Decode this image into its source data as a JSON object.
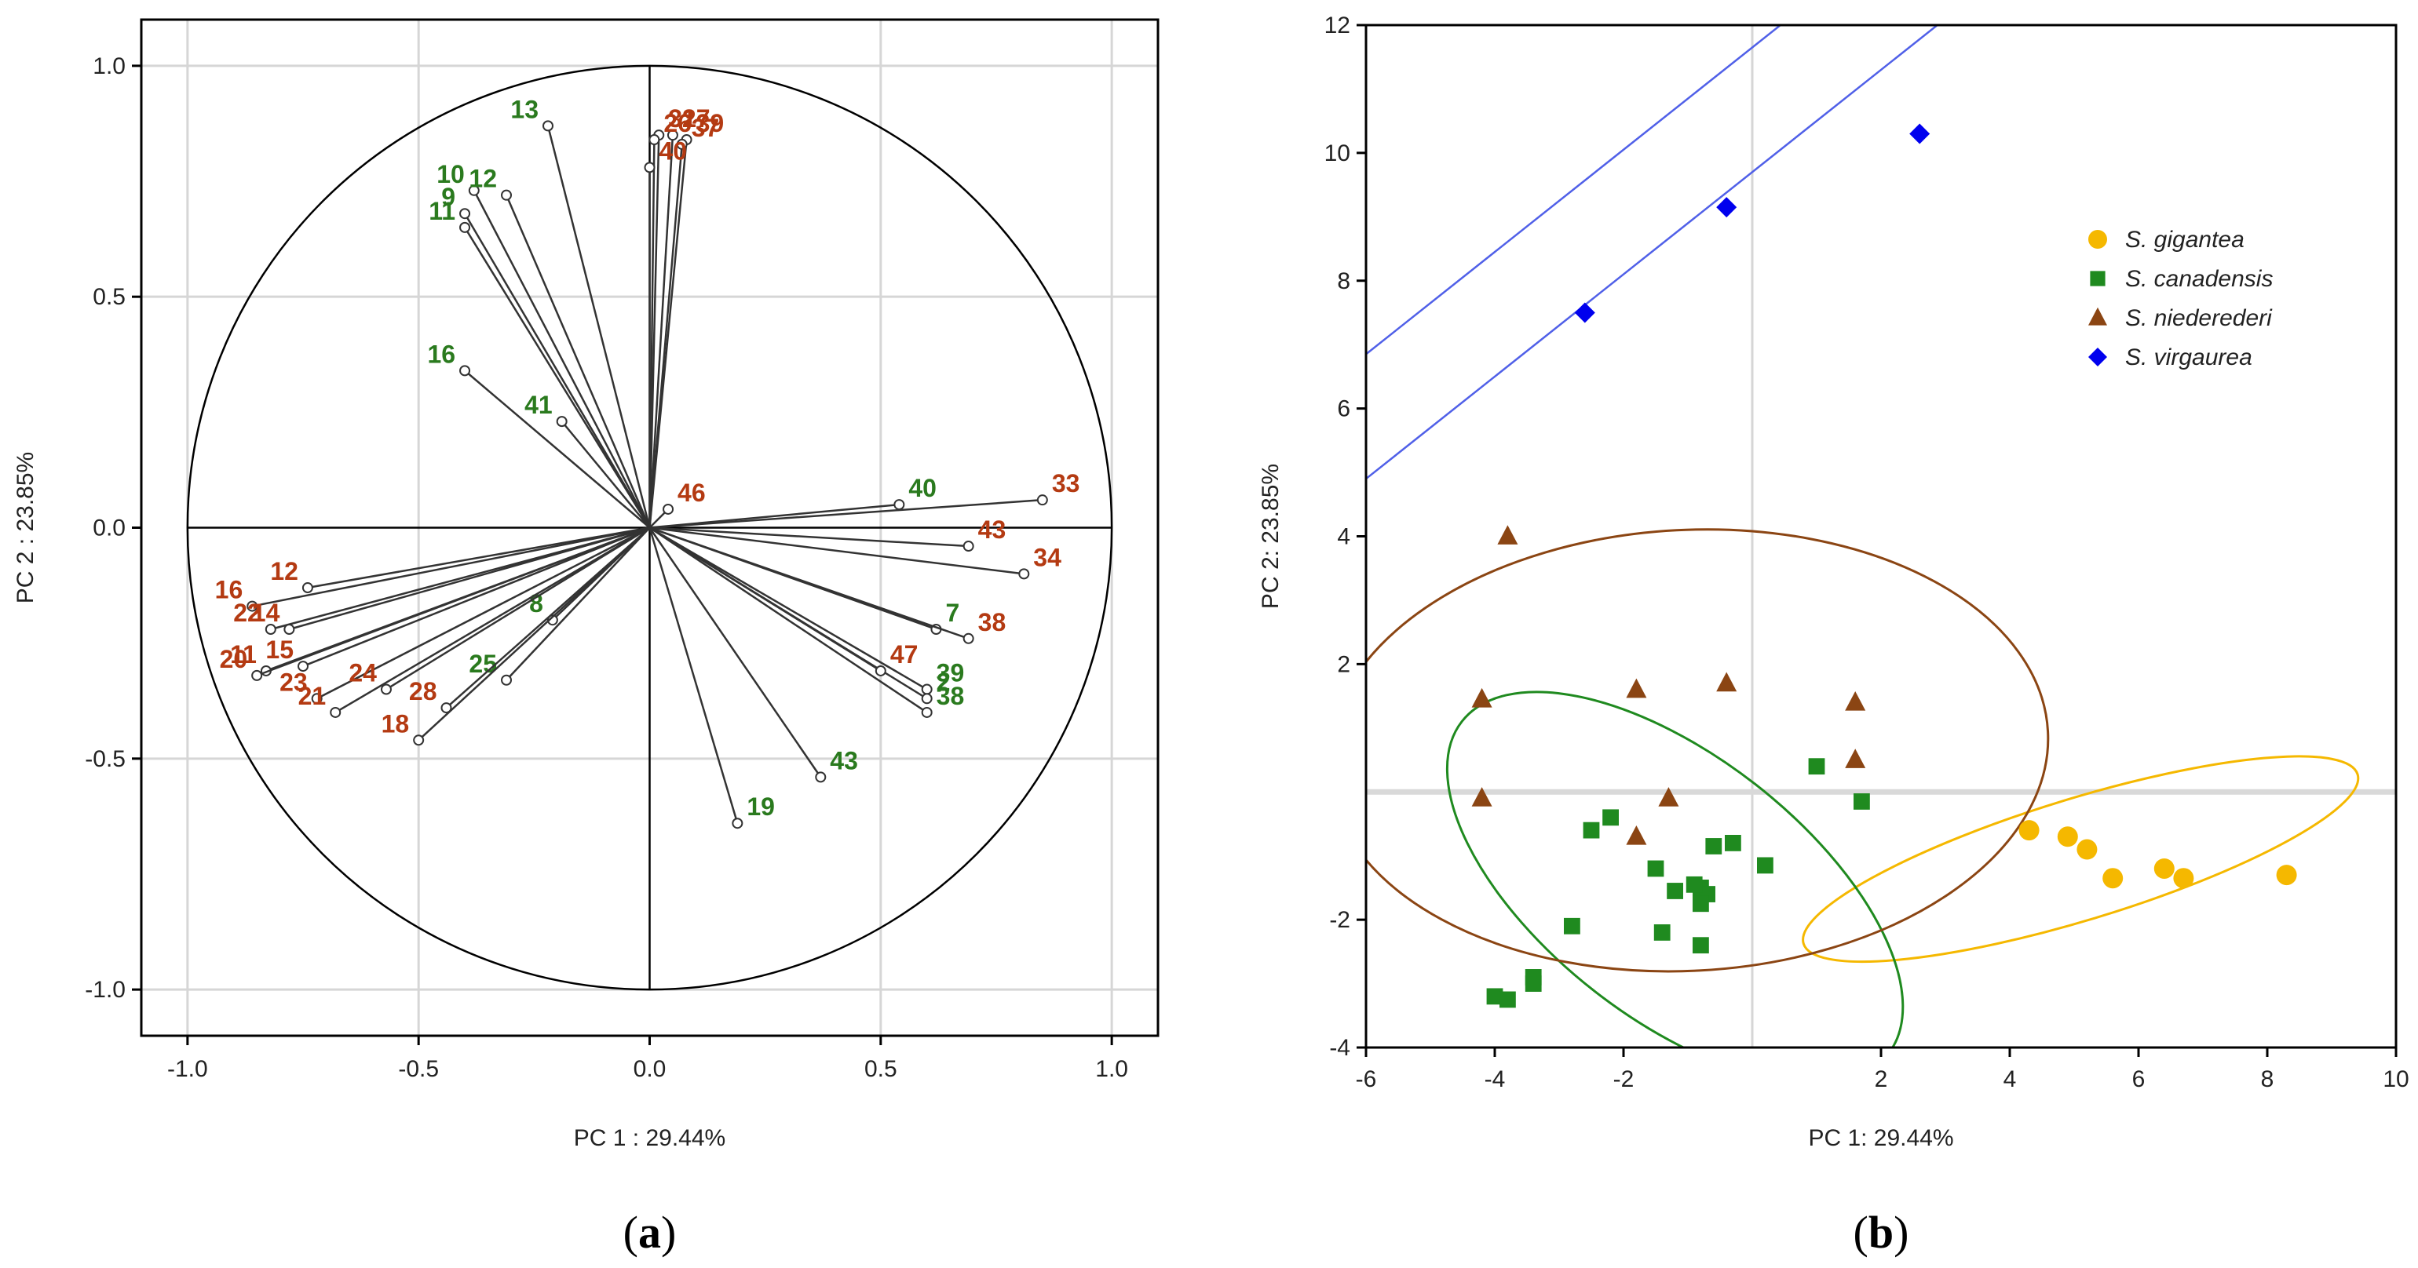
{
  "chart_data": [
    {
      "panel_label": "a",
      "type": "scatter",
      "subtype": "loading-plot",
      "xlabel": "PC 1 : 29.44%",
      "ylabel": "PC 2 : 23.85%",
      "xlim": [
        -1.1,
        1.1
      ],
      "ylim": [
        -1.1,
        1.1
      ],
      "xticks": [
        -1.0,
        -0.5,
        0.0,
        0.5,
        1.0
      ],
      "yticks": [
        -1.0,
        -0.5,
        0.0,
        0.5,
        1.0
      ],
      "xtick_labels": [
        "-1.0",
        "-0.5",
        "0.0",
        "0.5",
        "1.0"
      ],
      "ytick_labels": [
        "-1.0",
        "-0.5",
        "0.0",
        "0.5",
        "1.0"
      ],
      "unit_circle": true,
      "colors": {
        "green": "#2a7a1e",
        "red": "#b43a12"
      },
      "series": [
        {
          "name": "green-variables",
          "color": "green",
          "points": [
            {
              "label": "13",
              "x": -0.22,
              "y": 0.87
            },
            {
              "label": "10",
              "x": -0.38,
              "y": 0.73
            },
            {
              "label": "12",
              "x": -0.31,
              "y": 0.72
            },
            {
              "label": "9",
              "x": -0.4,
              "y": 0.68
            },
            {
              "label": "11",
              "x": -0.4,
              "y": 0.65
            },
            {
              "label": "16",
              "x": -0.4,
              "y": 0.34
            },
            {
              "label": "41",
              "x": -0.19,
              "y": 0.23
            },
            {
              "label": "40",
              "x": 0.54,
              "y": 0.05
            },
            {
              "label": "8",
              "x": -0.21,
              "y": -0.2
            },
            {
              "label": "25",
              "x": -0.31,
              "y": -0.33
            },
            {
              "label": "7",
              "x": 0.62,
              "y": -0.22
            },
            {
              "label": "39",
              "x": 0.6,
              "y": -0.35
            },
            {
              "label": "2",
              "x": 0.6,
              "y": -0.37
            },
            {
              "label": "38",
              "x": 0.6,
              "y": -0.4
            },
            {
              "label": "43",
              "x": 0.37,
              "y": -0.54
            },
            {
              "label": "19",
              "x": 0.19,
              "y": -0.64
            }
          ]
        },
        {
          "name": "red-variables",
          "color": "red",
          "points": [
            {
              "label": "31",
              "x": 0.02,
              "y": 0.85
            },
            {
              "label": "27",
              "x": 0.05,
              "y": 0.85
            },
            {
              "label": "39",
              "x": 0.08,
              "y": 0.84
            },
            {
              "label": "26",
              "x": 0.01,
              "y": 0.84
            },
            {
              "label": "37",
              "x": 0.07,
              "y": 0.83
            },
            {
              "label": "40",
              "x": 0.0,
              "y": 0.78
            },
            {
              "label": "46",
              "x": 0.04,
              "y": 0.04
            },
            {
              "label": "33",
              "x": 0.85,
              "y": 0.06
            },
            {
              "label": "43",
              "x": 0.69,
              "y": -0.04
            },
            {
              "label": "34",
              "x": 0.81,
              "y": -0.1
            },
            {
              "label": "38",
              "x": 0.69,
              "y": -0.24
            },
            {
              "label": "47",
              "x": 0.5,
              "y": -0.31
            },
            {
              "label": "12",
              "x": -0.74,
              "y": -0.13
            },
            {
              "label": "16",
              "x": -0.86,
              "y": -0.17
            },
            {
              "label": "22",
              "x": -0.82,
              "y": -0.22
            },
            {
              "label": "14",
              "x": -0.78,
              "y": -0.22
            },
            {
              "label": "11",
              "x": -0.83,
              "y": -0.31
            },
            {
              "label": "15",
              "x": -0.75,
              "y": -0.3
            },
            {
              "label": "20",
              "x": -0.85,
              "y": -0.32
            },
            {
              "label": "23",
              "x": -0.72,
              "y": -0.37
            },
            {
              "label": "21",
              "x": -0.68,
              "y": -0.4
            },
            {
              "label": "24",
              "x": -0.57,
              "y": -0.35
            },
            {
              "label": "28",
              "x": -0.44,
              "y": -0.39
            },
            {
              "label": "18",
              "x": -0.5,
              "y": -0.46
            }
          ]
        }
      ]
    },
    {
      "panel_label": "b",
      "type": "scatter",
      "xlabel": "PC 1: 29.44%",
      "ylabel": "PC 2: 23.85%",
      "xlim": [
        -6,
        10
      ],
      "ylim": [
        -4,
        12
      ],
      "xticks": [
        -6,
        -4,
        -2,
        2,
        4,
        6,
        8,
        10
      ],
      "yticks": [
        -4,
        -2,
        2,
        4,
        6,
        8,
        10,
        12
      ],
      "xtick_labels": [
        "-6",
        "-4",
        "-2",
        "2",
        "4",
        "6",
        "8",
        "10"
      ],
      "ytick_labels": [
        "-4",
        "-2",
        "2",
        "4",
        "6",
        "8",
        "10",
        "12"
      ],
      "reference_lines": {
        "x": 0,
        "y": 0
      },
      "legend": {
        "position": "upper-right",
        "entries": [
          "S. gigantea",
          "S. canadensis",
          "S. niederederi",
          "S. virgaurea"
        ]
      },
      "series": [
        {
          "name": "S. gigantea",
          "marker": "circle",
          "color": "#f5b800",
          "points": [
            [
              4.3,
              -0.6
            ],
            [
              4.9,
              -0.7
            ],
            [
              5.2,
              -0.9
            ],
            [
              5.6,
              -1.35
            ],
            [
              6.4,
              -1.2
            ],
            [
              6.7,
              -1.35
            ],
            [
              8.3,
              -1.3
            ]
          ],
          "ellipse": {
            "cx": 5.1,
            "cy": -1.05,
            "rx": 4.5,
            "ry": 0.95,
            "angle_deg": -17
          }
        },
        {
          "name": "S. canadensis",
          "marker": "square",
          "color": "#1f8a1f",
          "points": [
            [
              1.0,
              0.4
            ],
            [
              1.7,
              -0.15
            ],
            [
              -2.2,
              -0.4
            ],
            [
              -2.5,
              -0.6
            ],
            [
              -0.6,
              -0.85
            ],
            [
              -0.3,
              -0.8
            ],
            [
              -1.5,
              -1.2
            ],
            [
              -0.8,
              -1.5
            ],
            [
              -0.7,
              -1.6
            ],
            [
              -0.8,
              -1.75
            ],
            [
              -0.9,
              -1.45
            ],
            [
              -1.2,
              -1.55
            ],
            [
              0.2,
              -1.15
            ],
            [
              -2.8,
              -2.1
            ],
            [
              -1.4,
              -2.2
            ],
            [
              -0.8,
              -2.4
            ],
            [
              -3.4,
              -2.9
            ],
            [
              -3.4,
              -3.0
            ],
            [
              -4.0,
              -3.2
            ],
            [
              -3.8,
              -3.25
            ]
          ],
          "ellipse": {
            "cx": -1.2,
            "cy": -1.5,
            "rx": 4.2,
            "ry": 2.05,
            "angle_deg": 38
          }
        },
        {
          "name": "S. niederederi",
          "marker": "triangle",
          "color": "#8b4513",
          "points": [
            [
              -3.8,
              4.0
            ],
            [
              -4.2,
              1.45
            ],
            [
              -1.8,
              1.6
            ],
            [
              -0.4,
              1.7
            ],
            [
              1.6,
              1.4
            ],
            [
              1.6,
              0.5
            ],
            [
              -4.2,
              -0.1
            ],
            [
              -1.3,
              -0.1
            ],
            [
              -1.8,
              -0.7
            ]
          ],
          "ellipse": {
            "cx": -1.0,
            "cy": 0.65,
            "rx": 5.6,
            "ry": 3.45,
            "angle_deg": -3
          }
        },
        {
          "name": "S. virgaurea",
          "marker": "diamond",
          "color": "#0000ee",
          "points": [
            [
              -2.6,
              7.5
            ],
            [
              -0.4,
              9.15
            ],
            [
              2.6,
              10.3
            ]
          ],
          "band": {
            "slope": 0.8,
            "intercepts": [
              11.65,
              9.7
            ]
          }
        }
      ]
    }
  ]
}
